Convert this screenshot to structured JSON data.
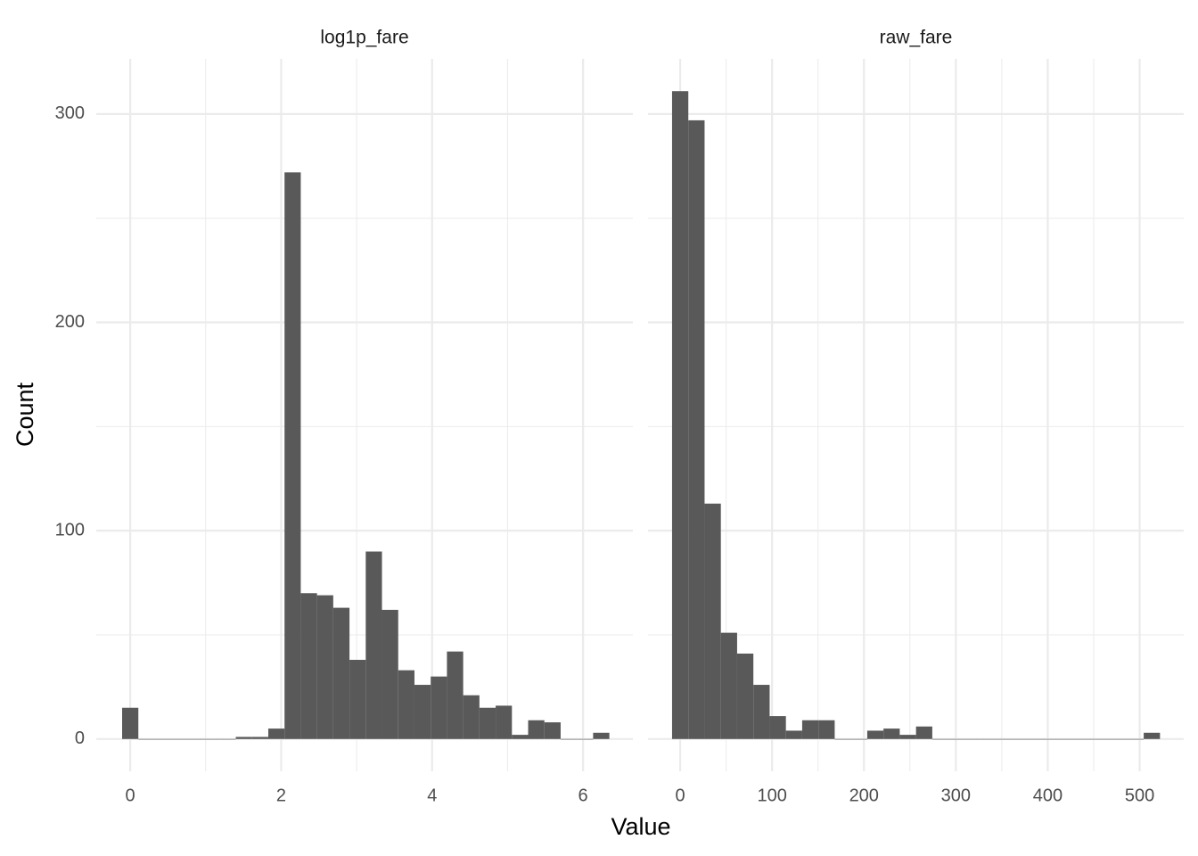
{
  "chart_data": {
    "type": "histogram",
    "xlabel": "Value",
    "ylabel": "Count",
    "color": "#595959",
    "grid": true,
    "ylim": [
      -15.5,
      326.5
    ],
    "yticks": [
      0,
      100,
      200,
      300
    ],
    "y_minor_grid": [
      50,
      150,
      250
    ],
    "panels": [
      {
        "title": "log1p_fare",
        "xlim": [
          -0.45,
          6.66
        ],
        "xticks": [
          0,
          2,
          4,
          6
        ],
        "x_minor_grid": [
          1,
          3,
          5
        ],
        "bins": [
          -0.1076,
          0.1076,
          0.3228,
          0.538,
          0.7532,
          0.9684,
          1.1836,
          1.3988,
          1.614,
          1.8292,
          2.0444,
          2.2596,
          2.4748,
          2.69,
          2.9052,
          3.1204,
          3.3356,
          3.5508,
          3.766,
          3.9812,
          4.1964,
          4.4116,
          4.6268,
          4.842,
          5.0572,
          5.2724,
          5.4876,
          5.7028,
          5.918,
          6.1332,
          6.3484
        ],
        "counts": [
          15,
          0,
          0,
          0,
          0,
          0,
          0,
          1,
          1,
          5,
          272,
          70,
          69,
          63,
          38,
          90,
          62,
          33,
          26,
          30,
          42,
          21,
          15,
          16,
          2,
          9,
          8,
          0,
          0,
          3
        ]
      },
      {
        "title": "raw_fare",
        "xlim": [
          -35,
          548
        ],
        "xticks": [
          0,
          100,
          200,
          300,
          400,
          500
        ],
        "x_minor_grid": [
          50,
          150,
          250,
          350,
          450
        ],
        "bins": [
          -8.85,
          8.85,
          26.55,
          44.25,
          61.95,
          79.65,
          97.35,
          115.05,
          132.75,
          150.45,
          168.15,
          185.85,
          203.55,
          221.25,
          238.95,
          256.65,
          274.35,
          292.05,
          309.75,
          327.45,
          345.15,
          362.85,
          380.55,
          398.25,
          415.95,
          433.65,
          451.35,
          469.05,
          486.75,
          504.45,
          522.15
        ],
        "counts": [
          311,
          297,
          113,
          51,
          41,
          26,
          11,
          4,
          9,
          9,
          0,
          0,
          4,
          5,
          2,
          6,
          0,
          0,
          0,
          0,
          0,
          0,
          0,
          0,
          0,
          0,
          0,
          0,
          0,
          3
        ]
      }
    ]
  }
}
